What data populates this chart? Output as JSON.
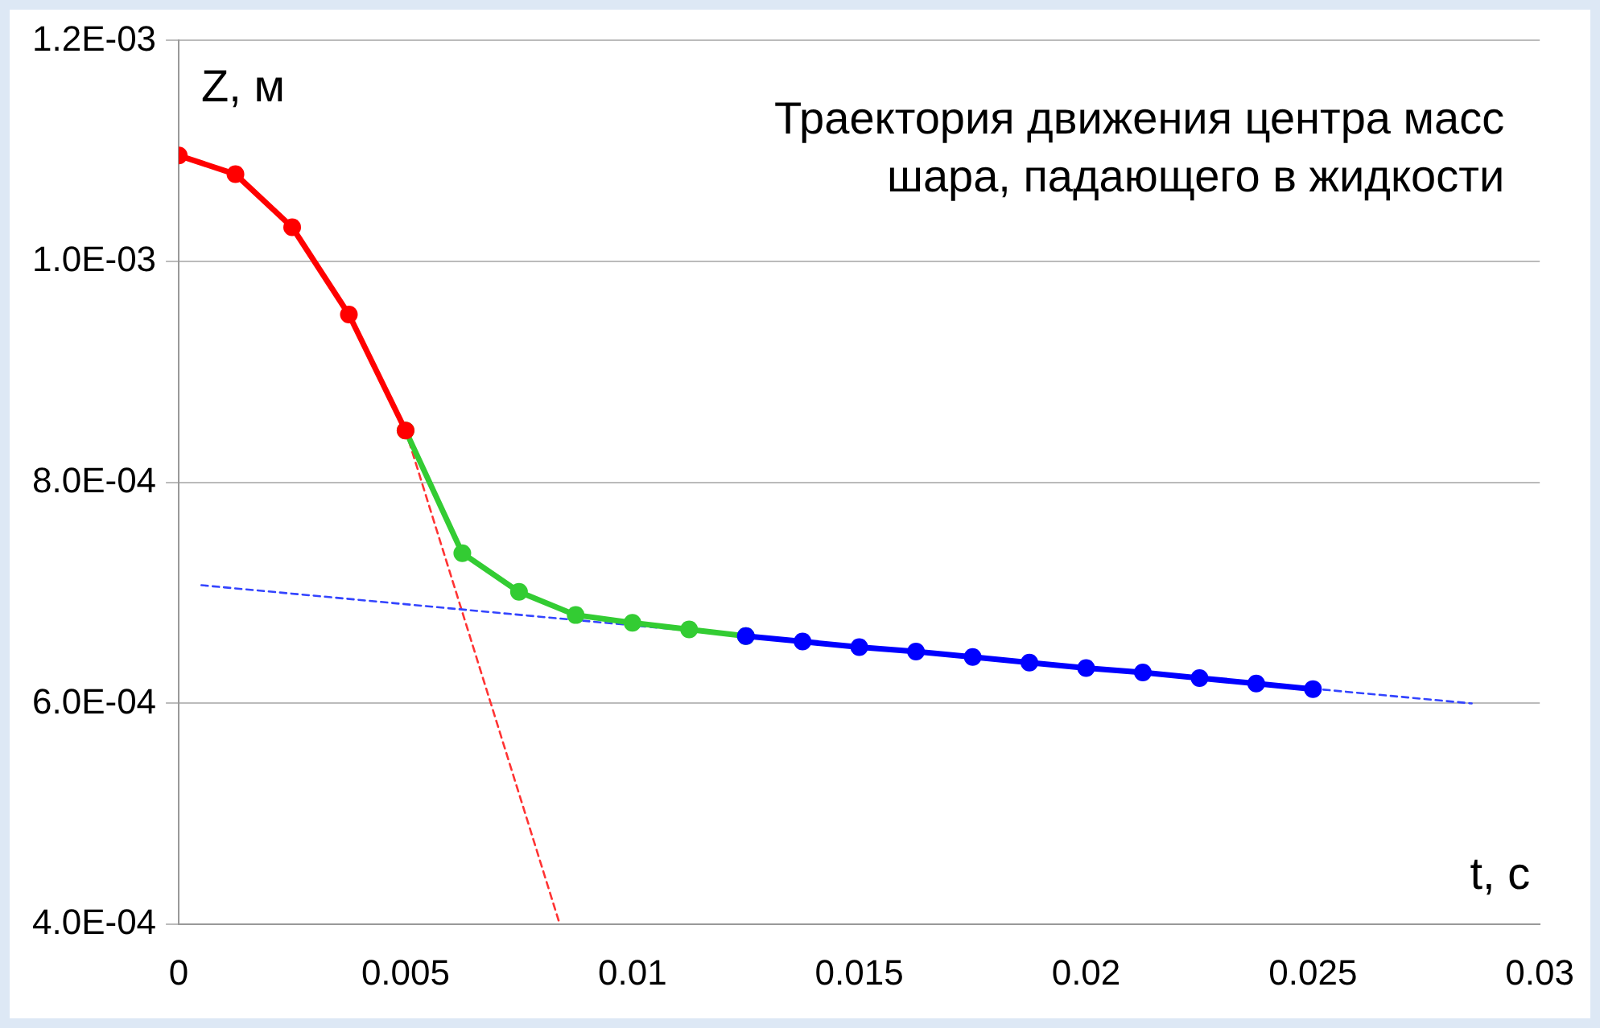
{
  "chart_data": {
    "type": "line",
    "title": "Траектория движения центра масс\nшара, падающего в жидкости",
    "xlabel": "t, с",
    "ylabel": "Z, м",
    "xlim": [
      0,
      0.03
    ],
    "xticks": [
      0,
      0.005,
      0.01,
      0.015,
      0.02,
      0.025,
      0.03
    ],
    "ylim": [
      0.0004,
      0.0012
    ],
    "yticks": [
      {
        "value": 0.0004,
        "label": "4.0E-04"
      },
      {
        "value": 0.0006,
        "label": "6.0E-04"
      },
      {
        "value": 0.0008,
        "label": "8.0E-04"
      },
      {
        "value": 0.001,
        "label": "1.0E-03"
      },
      {
        "value": 0.0012,
        "label": "1.2E-03"
      }
    ],
    "grid": "y",
    "legend": false,
    "series": [
      {
        "color": "#ff3333",
        "marker": "none",
        "line_style": "dashed",
        "x": [
          0.005,
          0.0084
        ],
        "values": [
          0.000847,
          0.0004
        ]
      },
      {
        "color": "#3344ff",
        "marker": "none",
        "line_style": "dashed",
        "x": [
          0.0005,
          0.0285
        ],
        "values": [
          0.000707,
          0.0006
        ]
      },
      {
        "color": "#33cc33",
        "marker": "circle",
        "line_style": "solid",
        "x": [
          0.005,
          0.00625,
          0.0075,
          0.00875,
          0.01,
          0.01125,
          0.0125
        ],
        "values": [
          0.000847,
          0.000736,
          0.000701,
          0.00068,
          0.000673,
          0.000667,
          0.000661
        ]
      },
      {
        "color": "#ff0000",
        "marker": "circle",
        "line_style": "solid",
        "x": [
          0,
          0.00125,
          0.0025,
          0.00375,
          0.005
        ],
        "values": [
          0.001096,
          0.001079,
          0.001031,
          0.000952,
          0.000847
        ]
      },
      {
        "color": "#0000ff",
        "marker": "circle",
        "line_style": "solid",
        "x": [
          0.0125,
          0.01375,
          0.015,
          0.01625,
          0.0175,
          0.01875,
          0.02,
          0.02125,
          0.0225,
          0.02375,
          0.025
        ],
        "values": [
          0.000661,
          0.000656,
          0.000651,
          0.000647,
          0.000642,
          0.000637,
          0.000632,
          0.000628,
          0.000623,
          0.000618,
          0.000613
        ]
      }
    ]
  }
}
